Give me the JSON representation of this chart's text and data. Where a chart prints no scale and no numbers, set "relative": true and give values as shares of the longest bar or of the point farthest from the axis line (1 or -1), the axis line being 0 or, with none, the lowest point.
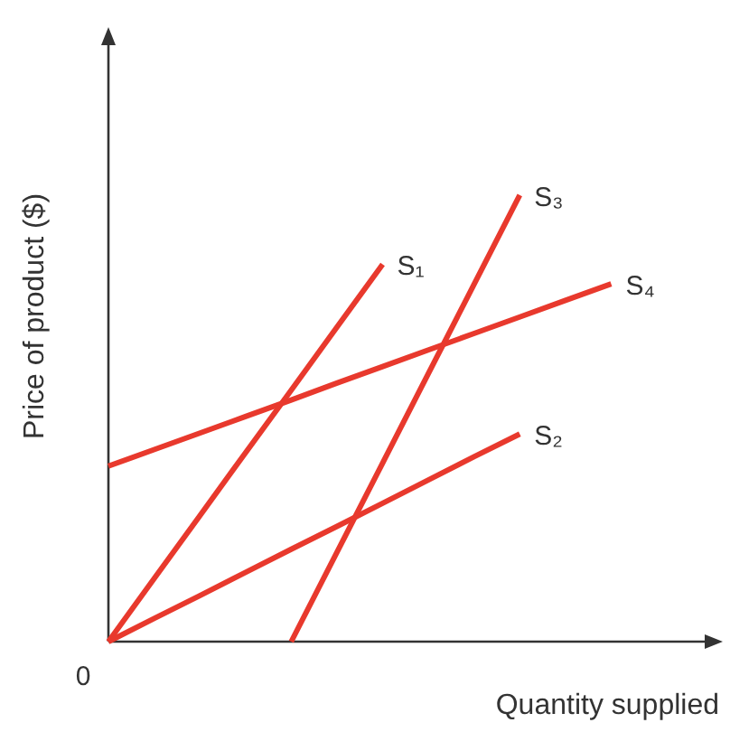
{
  "chart_data": {
    "type": "line",
    "xlabel": "Quantity supplied",
    "ylabel": "Price of product ($)",
    "relative": true,
    "categories": [
      null,
      null,
      null,
      null,
      null,
      null,
      null,
      null,
      null,
      null,
      null,
      null
    ],
    "series": [
      {
        "name": "S₁",
        "color": "#e8392d",
        "values": [
          0,
          0.141,
          0.282,
          0.423,
          0.563,
          0.704,
          0.845,
          null,
          null,
          null,
          null,
          null
        ]
      },
      {
        "name": "S₂",
        "color": "#e8392d",
        "values": [
          0,
          0.052,
          0.103,
          0.155,
          0.207,
          0.258,
          0.31,
          0.362,
          0.414,
          0.465,
          null,
          null
        ]
      },
      {
        "name": "S₃",
        "color": "#e8392d",
        "values": [
          null,
          null,
          null,
          null,
          0,
          0.2,
          0.4,
          0.6,
          0.8,
          1.0,
          null,
          null
        ]
      },
      {
        "name": "S₄",
        "color": "#e8392d",
        "values": [
          0.393,
          0.43,
          0.467,
          0.504,
          0.541,
          0.579,
          0.616,
          0.653,
          0.69,
          0.727,
          0.764,
          0.801
        ]
      }
    ],
    "annotations": [
      "0"
    ]
  }
}
